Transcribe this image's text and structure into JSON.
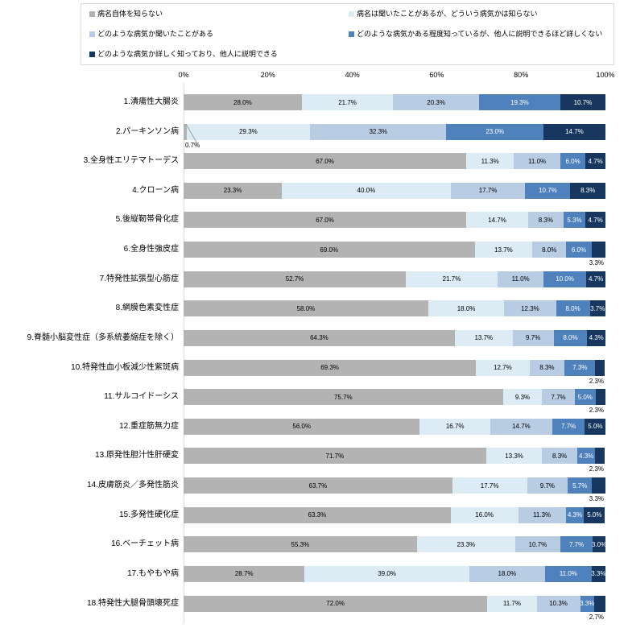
{
  "chart_data": {
    "type": "bar",
    "stacked": true,
    "orientation": "horizontal",
    "title": "",
    "xlabel": "",
    "ylabel": "",
    "value_format": "percent_one_decimal",
    "xlim": [
      0,
      100
    ],
    "grid": false,
    "legend_position": "top-boxed",
    "x_axis": {
      "ticks": [
        "0%",
        "20%",
        "40%",
        "60%",
        "80%",
        "100%"
      ]
    },
    "legend": [
      {
        "label": "病名自体を知らない",
        "color": "#b3b3b3"
      },
      {
        "label": "病名は聞いたことがあるが、どういう病気かは知らない",
        "color": "#ddebf4"
      },
      {
        "label": "どのような病気か聞いたことがある",
        "color": "#b8cce4"
      },
      {
        "label": "どのような病気かある程度知っているが、他人に説明できるほど詳しくない",
        "color": "#4f81bd"
      },
      {
        "label": "どのような病気か詳しく知っており、他人に説明できる",
        "color": "#17375e"
      }
    ],
    "categories": [
      "1.潰瘍性大腸炎",
      "2.パーキンソン病",
      "3.全身性エリテマトーデス",
      "4.クローン病",
      "5.後縦靭帯骨化症",
      "6.全身性強皮症",
      "7.特発性拡張型心筋症",
      "8.網膜色素変性症",
      "9.脊髄小脳変性症（多系統萎縮症を除く）",
      "10.特発性血小板減少性紫斑病",
      "11.サルコイドーシス",
      "12.重症筋無力症",
      "13.原発性胆汁性肝硬変",
      "14.皮膚筋炎／多発性筋炎",
      "15.多発性硬化症",
      "16.ベーチェット病",
      "17.もやもや病",
      "18.特発性大腿骨頭壊死症"
    ],
    "series": [
      {
        "name": "病名自体を知らない",
        "color": "#b3b3b3",
        "label_color": "#000000",
        "values": [
          28.0,
          0.7,
          67.0,
          23.3,
          67.0,
          69.0,
          52.7,
          58.0,
          64.3,
          69.3,
          75.7,
          56.0,
          71.7,
          63.7,
          63.3,
          55.3,
          28.7,
          72.0
        ]
      },
      {
        "name": "病名は聞いたことがあるが、どういう病気かは知らない",
        "color": "#ddebf4",
        "label_color": "#000000",
        "values": [
          21.7,
          29.3,
          11.3,
          40.0,
          14.7,
          13.7,
          21.7,
          18.0,
          13.7,
          12.7,
          9.3,
          16.7,
          13.3,
          17.7,
          16.0,
          23.3,
          39.0,
          11.7
        ]
      },
      {
        "name": "どのような病気か聞いたことがある",
        "color": "#b8cce4",
        "label_color": "#000000",
        "values": [
          20.3,
          32.3,
          11.0,
          17.7,
          8.3,
          8.0,
          11.0,
          12.3,
          9.7,
          8.3,
          7.7,
          14.7,
          8.3,
          9.7,
          11.3,
          10.7,
          18.0,
          10.3
        ]
      },
      {
        "name": "どのような病気かある程度知っているが、他人に説明できるほど詳しくない",
        "color": "#4f81bd",
        "label_color": "#ffffff",
        "values": [
          19.3,
          23.0,
          6.0,
          10.7,
          5.3,
          6.0,
          10.0,
          8.0,
          8.0,
          7.3,
          5.0,
          7.7,
          4.3,
          5.7,
          4.3,
          7.7,
          11.0,
          3.3
        ]
      },
      {
        "name": "どのような病気か詳しく知っており、他人に説明できる",
        "color": "#17375e",
        "label_color": "#ffffff",
        "values": [
          10.7,
          14.7,
          4.7,
          8.3,
          4.7,
          3.3,
          4.7,
          3.7,
          4.3,
          2.3,
          2.3,
          5.0,
          2.3,
          3.3,
          5.0,
          3.0,
          3.3,
          2.7
        ]
      }
    ],
    "outside_labels": [
      {
        "row": 1,
        "series": 0,
        "side": "left",
        "leader": true,
        "text": "0.7%"
      },
      {
        "row": 5,
        "series": 4,
        "side": "right",
        "leader": false,
        "text": "3.3%"
      },
      {
        "row": 9,
        "series": 4,
        "side": "right",
        "leader": false,
        "text": "2.3%"
      },
      {
        "row": 10,
        "series": 4,
        "side": "right",
        "leader": false,
        "text": "2.3%"
      },
      {
        "row": 12,
        "series": 4,
        "side": "right",
        "leader": false,
        "text": "2.3%"
      },
      {
        "row": 13,
        "series": 4,
        "side": "right",
        "leader": false,
        "text": "3.3%"
      },
      {
        "row": 17,
        "series": 4,
        "side": "right",
        "leader": false,
        "text": "2.7%"
      }
    ]
  }
}
